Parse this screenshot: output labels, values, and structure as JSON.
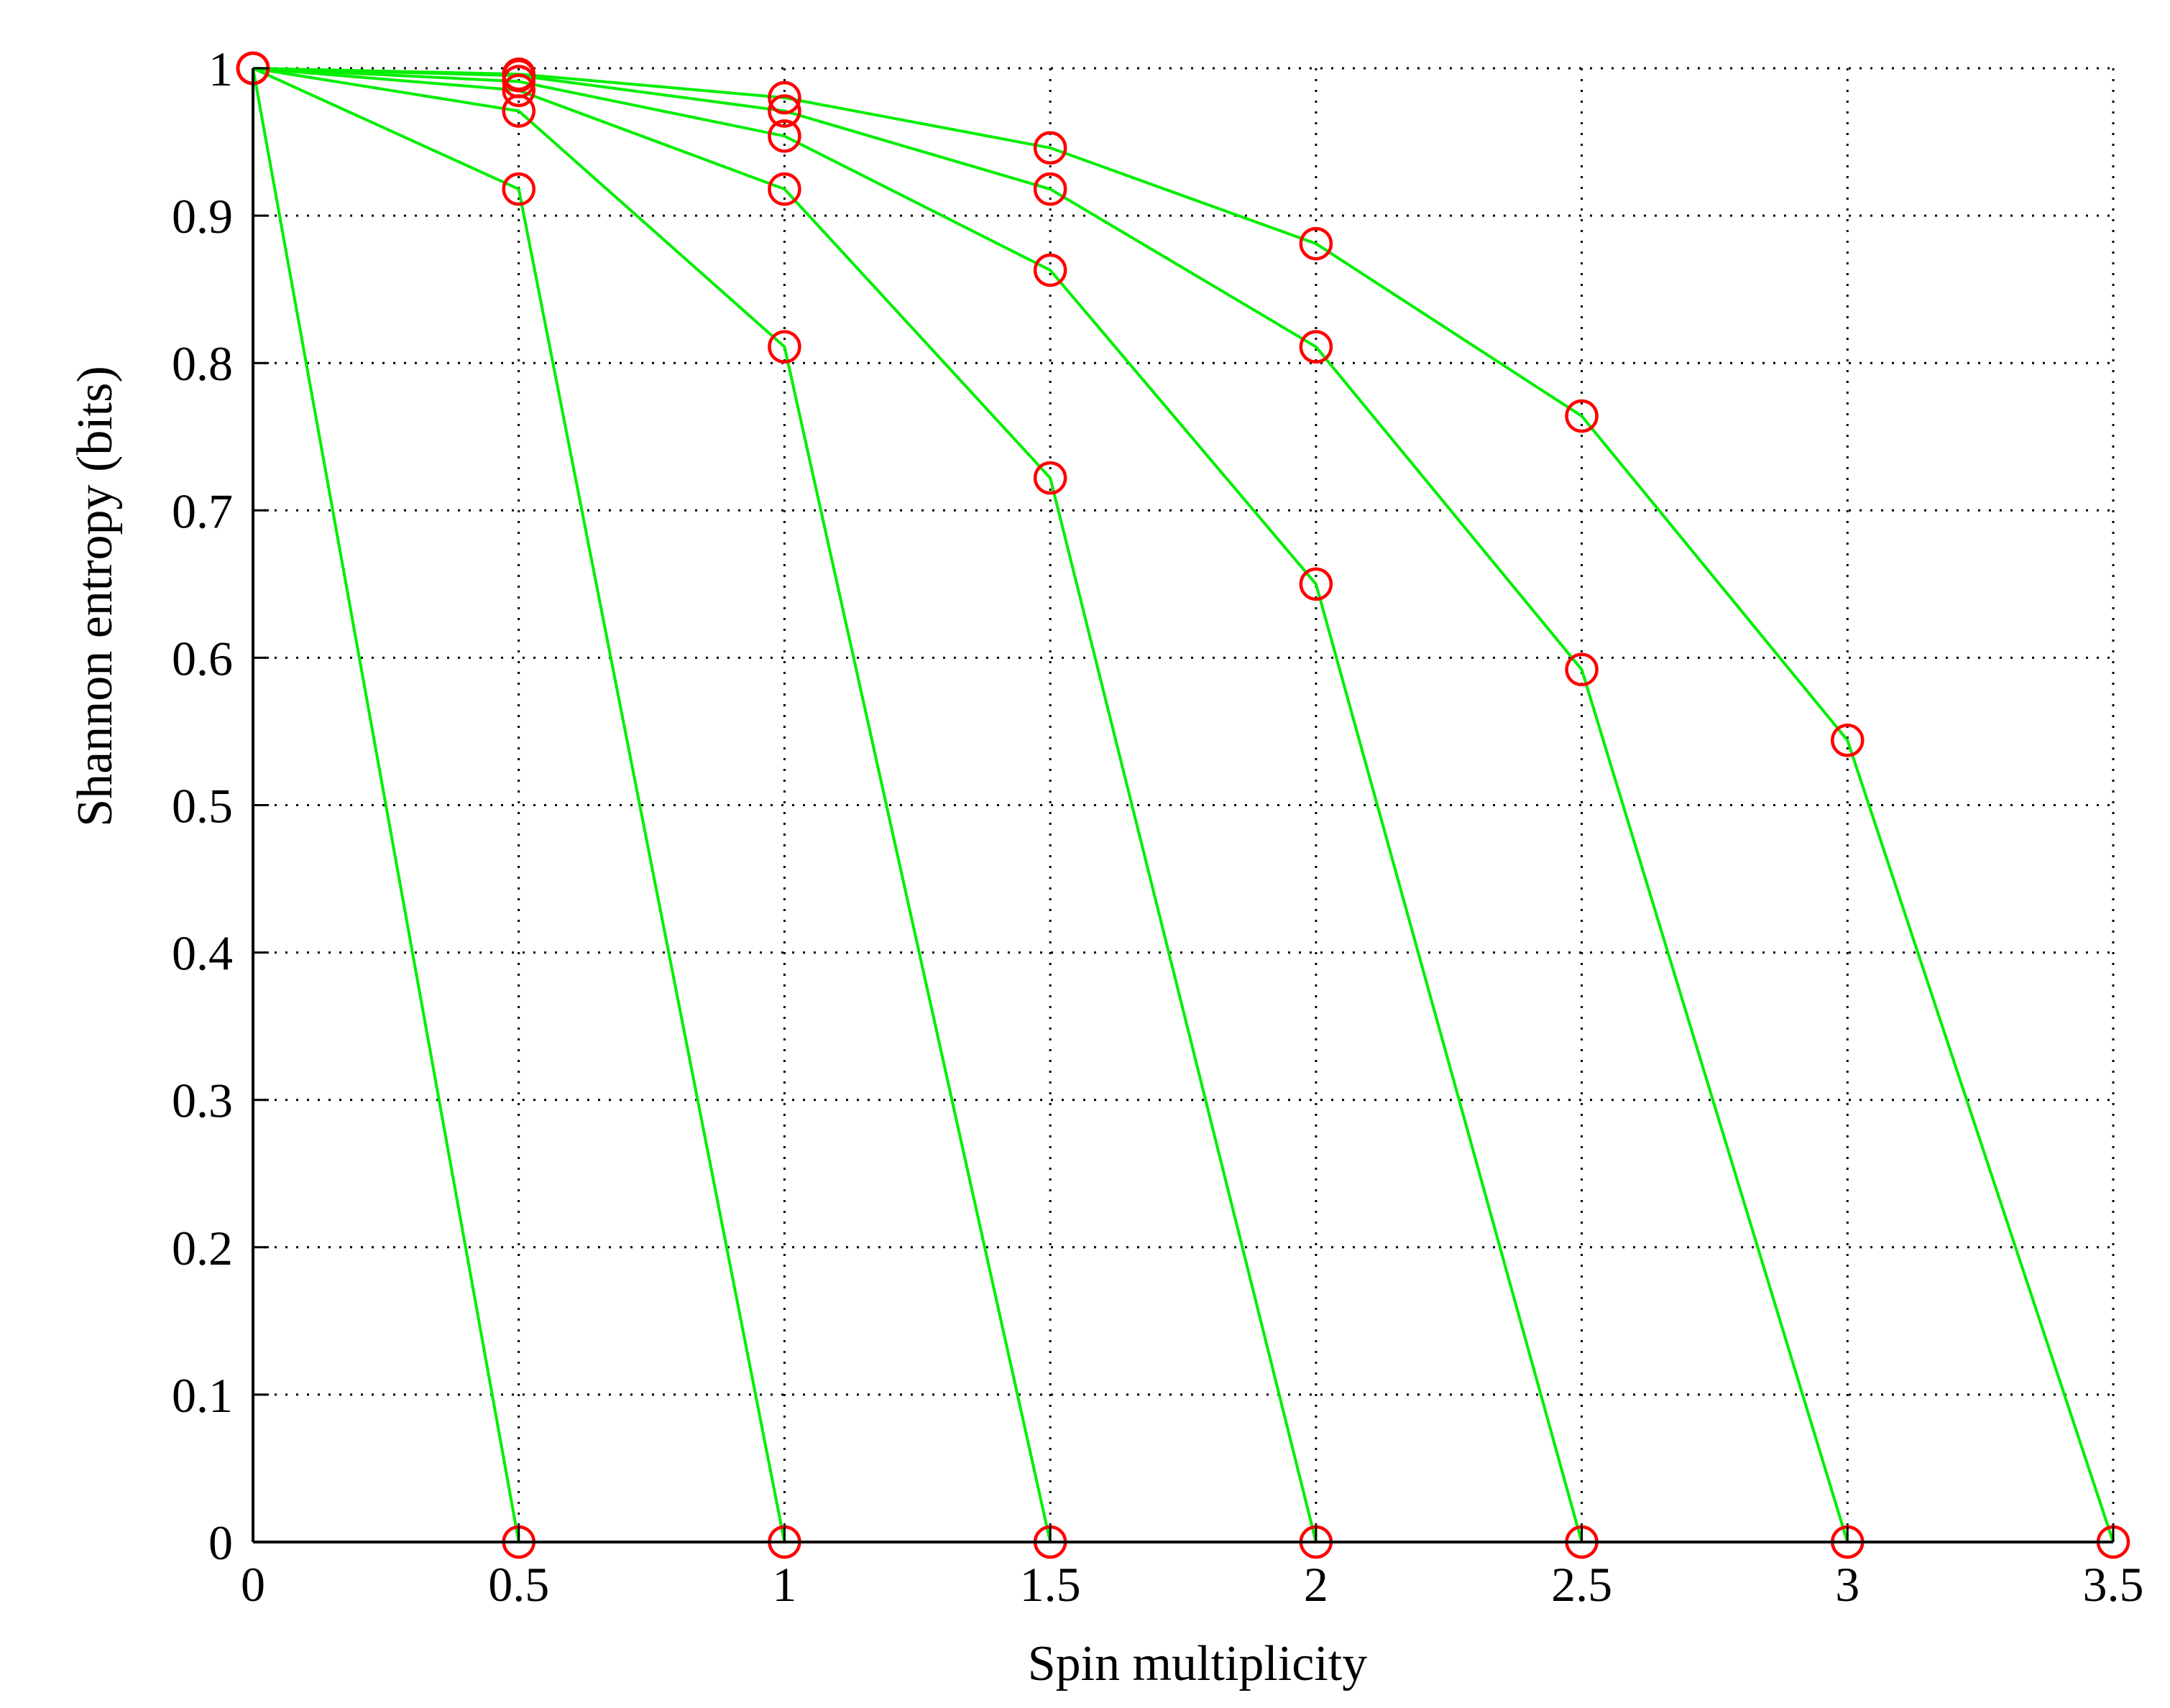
{
  "chart_data": {
    "type": "line",
    "title": "",
    "xlabel": "Spin multiplicity",
    "ylabel": "Shannon entropy (bits)",
    "xlim": [
      0,
      3.5
    ],
    "ylim": [
      0,
      1
    ],
    "xticks": [
      0,
      0.5,
      1,
      1.5,
      2,
      2.5,
      3,
      3.5
    ],
    "xtick_labels": [
      "0",
      "0.5",
      "1",
      "1.5",
      "2",
      "2.5",
      "3",
      "3.5"
    ],
    "yticks": [
      0,
      0.1,
      0.2,
      0.3,
      0.4,
      0.5,
      0.6,
      0.7,
      0.8,
      0.9,
      1
    ],
    "ytick_labels": [
      "0",
      "0.1",
      "0.2",
      "0.3",
      "0.4",
      "0.5",
      "0.6",
      "0.7",
      "0.8",
      "0.9",
      "1"
    ],
    "grid": true,
    "grid_style": "dotted",
    "line_color": "#00ee00",
    "marker": "circle",
    "marker_color": "#ff0000",
    "series": [
      {
        "x": [
          0,
          0.5
        ],
        "y": [
          1,
          0
        ]
      },
      {
        "x": [
          0,
          0.5,
          1
        ],
        "y": [
          1,
          0.918,
          0
        ]
      },
      {
        "x": [
          0,
          0.5,
          1,
          1.5
        ],
        "y": [
          1,
          0.971,
          0.811,
          0
        ]
      },
      {
        "x": [
          0,
          0.5,
          1,
          1.5,
          2
        ],
        "y": [
          1,
          0.985,
          0.918,
          0.722,
          0
        ]
      },
      {
        "x": [
          0,
          0.5,
          1,
          1.5,
          2,
          2.5
        ],
        "y": [
          1,
          0.991,
          0.954,
          0.863,
          0.65,
          0
        ]
      },
      {
        "x": [
          0,
          0.5,
          1,
          1.5,
          2,
          2.5,
          3
        ],
        "y": [
          1,
          0.995,
          0.971,
          0.918,
          0.811,
          0.592,
          0
        ]
      },
      {
        "x": [
          0,
          0.5,
          1,
          1.5,
          2,
          2.5,
          3,
          3.5
        ],
        "y": [
          1,
          0.996,
          0.98,
          0.946,
          0.881,
          0.764,
          0.544,
          0
        ]
      }
    ]
  }
}
